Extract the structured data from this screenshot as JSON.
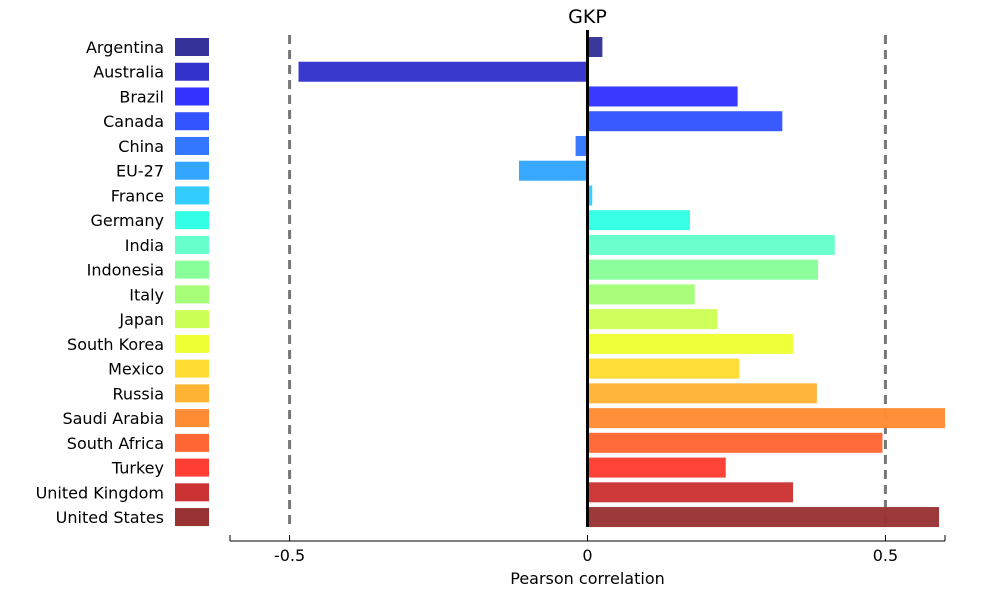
{
  "chart_data": {
    "type": "bar",
    "orientation": "horizontal",
    "title": "GKP",
    "xlabel": "Pearson correlation",
    "ylabel": "",
    "xlim": [
      -0.6,
      0.6
    ],
    "xticks": [
      -0.5,
      0,
      0.5
    ],
    "xtick_labels": [
      "-0.5",
      "0",
      "0.5"
    ],
    "reference_lines": [
      -0.5,
      0.5
    ],
    "zero_line": 0,
    "categories": [
      "Argentina",
      "Australia",
      "Brazil",
      "Canada",
      "China",
      "EU-27",
      "France",
      "Germany",
      "India",
      "Indonesia",
      "Italy",
      "Japan",
      "South Korea",
      "Mexico",
      "Russia",
      "Saudi Arabia",
      "South Africa",
      "Turkey",
      "United Kingdom",
      "United States"
    ],
    "values": [
      0.025,
      -0.485,
      0.252,
      0.327,
      -0.02,
      -0.115,
      0.008,
      0.172,
      0.415,
      0.387,
      0.18,
      0.218,
      0.345,
      0.255,
      0.385,
      0.6,
      0.495,
      0.232,
      0.345,
      0.59
    ],
    "colors": [
      "#333399",
      "#3333cc",
      "#3333ff",
      "#3355ff",
      "#3377ff",
      "#33a6ff",
      "#33ccff",
      "#33ffe6",
      "#66ffcc",
      "#88ff99",
      "#a6ff77",
      "#ccff55",
      "#eeff33",
      "#ffdd33",
      "#ffb333",
      "#ff8c33",
      "#ff6633",
      "#ff3d33",
      "#cc3333",
      "#993333"
    ]
  }
}
